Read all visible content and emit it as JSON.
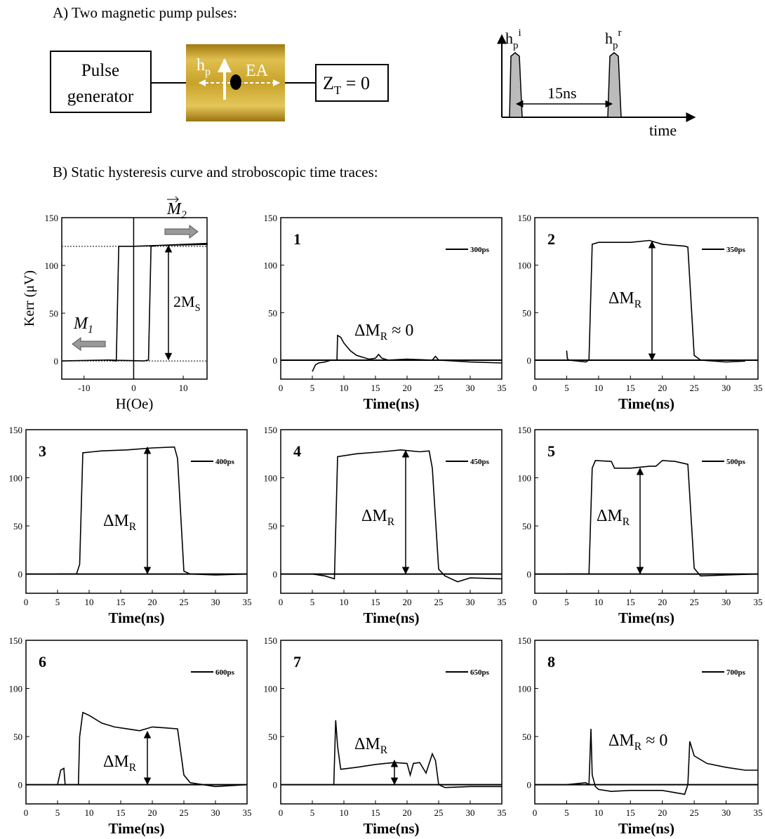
{
  "header": {
    "section_a": "A) Two magnetic pump pulses:",
    "section_b": "B) Static hysteresis curve and stroboscopic time traces:"
  },
  "diagram": {
    "generator": [
      "Pulse",
      "generator"
    ],
    "field": {
      "text": "h",
      "sub": "p"
    },
    "axis": "EA",
    "termination": {
      "text": "Z",
      "sub": "T",
      "suffix": " = 0"
    },
    "pulse_i": {
      "text": "h",
      "sub": "p",
      "sup": "i"
    },
    "pulse_r": {
      "text": "h",
      "sub": "p",
      "sup": "r"
    },
    "delay": "15ns",
    "time_axis": "time"
  },
  "chart_data": [
    {
      "type": "line",
      "x_label": "H(Oe)",
      "y_label": "Kerr (μV)",
      "xlim": [
        -14.5,
        14.8
      ],
      "ylim": [
        -19,
        150
      ],
      "xticks": [
        -10,
        0,
        10
      ],
      "yticks": [
        0,
        50,
        100,
        150
      ],
      "annotations": [
        {
          "text": "M",
          "sub": "1"
        },
        {
          "text": "M",
          "sub": "2"
        },
        {
          "text": "2M",
          "sub": "S"
        }
      ],
      "series": [
        {
          "color": "#000",
          "x": [
            -14.5,
            -5,
            2,
            3,
            3.5,
            5,
            10,
            14.8,
            14.8,
            5,
            0,
            -3,
            -3.5,
            -5,
            -14.5
          ],
          "values": [
            0,
            1,
            0,
            1,
            120,
            121,
            122,
            123,
            122,
            121,
            120,
            120,
            0,
            1,
            0
          ]
        }
      ]
    },
    {
      "type": "line",
      "x_label": "Time(ns)",
      "panel_label": "1",
      "xlim": [
        0,
        35
      ],
      "ylim": [
        -20,
        150
      ],
      "xticks": [
        0,
        5,
        10,
        15,
        20,
        25,
        30,
        35
      ],
      "yticks": [
        0,
        50,
        100,
        150
      ],
      "annotation": {
        "text": "ΔM",
        "sub": "R",
        "suffix": " ≈ 0"
      },
      "series": [
        {
          "name": "300ps",
          "color": "#000",
          "x": [
            5,
            5.5,
            6,
            7,
            8,
            8.9,
            9,
            9.5,
            10,
            11,
            12,
            13,
            14,
            15,
            15.5,
            16,
            17,
            20,
            24,
            24.5,
            25,
            30,
            35
          ],
          "values": [
            -12,
            -5,
            -3,
            -2,
            0,
            0,
            26,
            24,
            18,
            10,
            5,
            3,
            1,
            2,
            6,
            2,
            0,
            1,
            0,
            4,
            0,
            -2,
            -3
          ]
        }
      ]
    },
    {
      "type": "line",
      "x_label": "Time(ns)",
      "panel_label": "2",
      "xlim": [
        0,
        35
      ],
      "ylim": [
        -20,
        150
      ],
      "xticks": [
        0,
        5,
        10,
        15,
        20,
        25,
        30,
        35
      ],
      "yticks": [
        0,
        50,
        100,
        150
      ],
      "annotation": {
        "text": "ΔM",
        "sub": "R"
      },
      "series": [
        {
          "name": "350ps",
          "color": "#000",
          "x": [
            5,
            5.1,
            5.3,
            8,
            8.5,
            9,
            10,
            15,
            18,
            20,
            23.5,
            24,
            25,
            26,
            30,
            33
          ],
          "values": [
            10,
            2,
            0,
            -2,
            0,
            122,
            124,
            124,
            126,
            122,
            120,
            119,
            5,
            0,
            -2,
            -1
          ]
        }
      ]
    },
    {
      "type": "line",
      "x_label": "Time(ns)",
      "panel_label": "3",
      "xlim": [
        0,
        35
      ],
      "ylim": [
        -20,
        150
      ],
      "xticks": [
        0,
        5,
        10,
        15,
        20,
        25,
        30,
        35
      ],
      "yticks": [
        0,
        50,
        100,
        150
      ],
      "annotation": {
        "text": "ΔM",
        "sub": "R"
      },
      "series": [
        {
          "name": "400ps",
          "color": "#000",
          "x": [
            5,
            8,
            8.5,
            9,
            12,
            16,
            20,
            23.5,
            24,
            25,
            26,
            30,
            35
          ],
          "values": [
            0,
            0,
            10,
            126,
            128,
            129,
            131,
            132,
            120,
            3,
            0,
            -1,
            0
          ]
        }
      ]
    },
    {
      "type": "line",
      "x_label": "Time(ns)",
      "panel_label": "4",
      "xlim": [
        0,
        35
      ],
      "ylim": [
        -20,
        150
      ],
      "xticks": [
        0,
        5,
        10,
        15,
        20,
        25,
        30,
        35
      ],
      "yticks": [
        0,
        50,
        100,
        150
      ],
      "annotation": {
        "text": "ΔM",
        "sub": "R"
      },
      "series": [
        {
          "name": "450ps",
          "color": "#000",
          "x": [
            5,
            7,
            8.5,
            9,
            12,
            16,
            19,
            22,
            23.5,
            24,
            25,
            26,
            28,
            30,
            35
          ],
          "values": [
            0,
            -2,
            -5,
            122,
            125,
            127,
            129,
            127,
            128,
            110,
            5,
            -2,
            -8,
            -4,
            -5
          ]
        }
      ]
    },
    {
      "type": "line",
      "x_label": "Time(ns)",
      "panel_label": "5",
      "xlim": [
        0,
        35
      ],
      "ylim": [
        -20,
        150
      ],
      "xticks": [
        0,
        5,
        10,
        15,
        20,
        25,
        30,
        35
      ],
      "yticks": [
        0,
        50,
        100,
        150
      ],
      "annotation": {
        "text": "ΔM",
        "sub": "R"
      },
      "series": [
        {
          "name": "500ps",
          "color": "#000",
          "x": [
            5,
            8.5,
            9,
            9.5,
            12,
            12.5,
            15,
            18,
            19,
            20,
            22,
            24,
            25,
            26,
            30,
            35
          ],
          "values": [
            0,
            0,
            110,
            118,
            117,
            110,
            110,
            112,
            112,
            118,
            117,
            114,
            6,
            -2,
            -1,
            0
          ]
        }
      ]
    },
    {
      "type": "line",
      "x_label": "Time(ns)",
      "panel_label": "6",
      "xlim": [
        0,
        35
      ],
      "ylim": [
        -20,
        150
      ],
      "xticks": [
        0,
        5,
        10,
        15,
        20,
        25,
        30,
        35
      ],
      "yticks": [
        0,
        50,
        100,
        150
      ],
      "annotation": {
        "text": "ΔM",
        "sub": "R"
      },
      "series": [
        {
          "name": "600ps",
          "color": "#000",
          "x": [
            5,
            5.5,
            6,
            6.2,
            8.3,
            8.5,
            9,
            10,
            12,
            14,
            16,
            18,
            20,
            22,
            24,
            25,
            26,
            28,
            30,
            35
          ],
          "values": [
            0,
            15,
            17,
            0,
            0,
            50,
            75,
            72,
            64,
            60,
            58,
            56,
            60,
            59,
            58,
            10,
            2,
            0,
            -2,
            0
          ]
        }
      ]
    },
    {
      "type": "line",
      "x_label": "Time(ns)",
      "panel_label": "7",
      "xlim": [
        0,
        35
      ],
      "ylim": [
        -20,
        150
      ],
      "xticks": [
        0,
        5,
        10,
        15,
        20,
        25,
        30,
        35
      ],
      "yticks": [
        0,
        50,
        100,
        150
      ],
      "annotation": {
        "text": "ΔM",
        "sub": "R"
      },
      "series": [
        {
          "name": "650ps",
          "color": "#000",
          "x": [
            8.4,
            8.7,
            9,
            9.5,
            12,
            15,
            18,
            20,
            20.5,
            21,
            22,
            23,
            24,
            24.5,
            25,
            26,
            30,
            35
          ],
          "values": [
            0,
            67,
            40,
            16,
            18,
            21,
            23,
            22,
            10,
            22,
            23,
            12,
            32,
            25,
            0,
            -3,
            -2,
            -2
          ]
        }
      ]
    },
    {
      "type": "line",
      "x_label": "Time(ns)",
      "panel_label": "8",
      "xlim": [
        0,
        35
      ],
      "ylim": [
        -20,
        150
      ],
      "xticks": [
        0,
        5,
        10,
        15,
        20,
        25,
        30,
        35
      ],
      "yticks": [
        0,
        50,
        100,
        150
      ],
      "annotation": {
        "text": "ΔM",
        "sub": "R",
        "suffix": " ≈ 0"
      },
      "series": [
        {
          "name": "700ps",
          "color": "#000",
          "x": [
            5,
            8,
            8.5,
            8.8,
            9,
            9.5,
            10,
            12,
            15,
            20,
            23.5,
            24,
            24.3,
            25,
            27,
            30,
            33,
            35
          ],
          "values": [
            0,
            2,
            0,
            58,
            10,
            -2,
            -5,
            -7,
            -6,
            -6,
            -10,
            0,
            45,
            30,
            22,
            18,
            15,
            15
          ]
        }
      ]
    }
  ]
}
